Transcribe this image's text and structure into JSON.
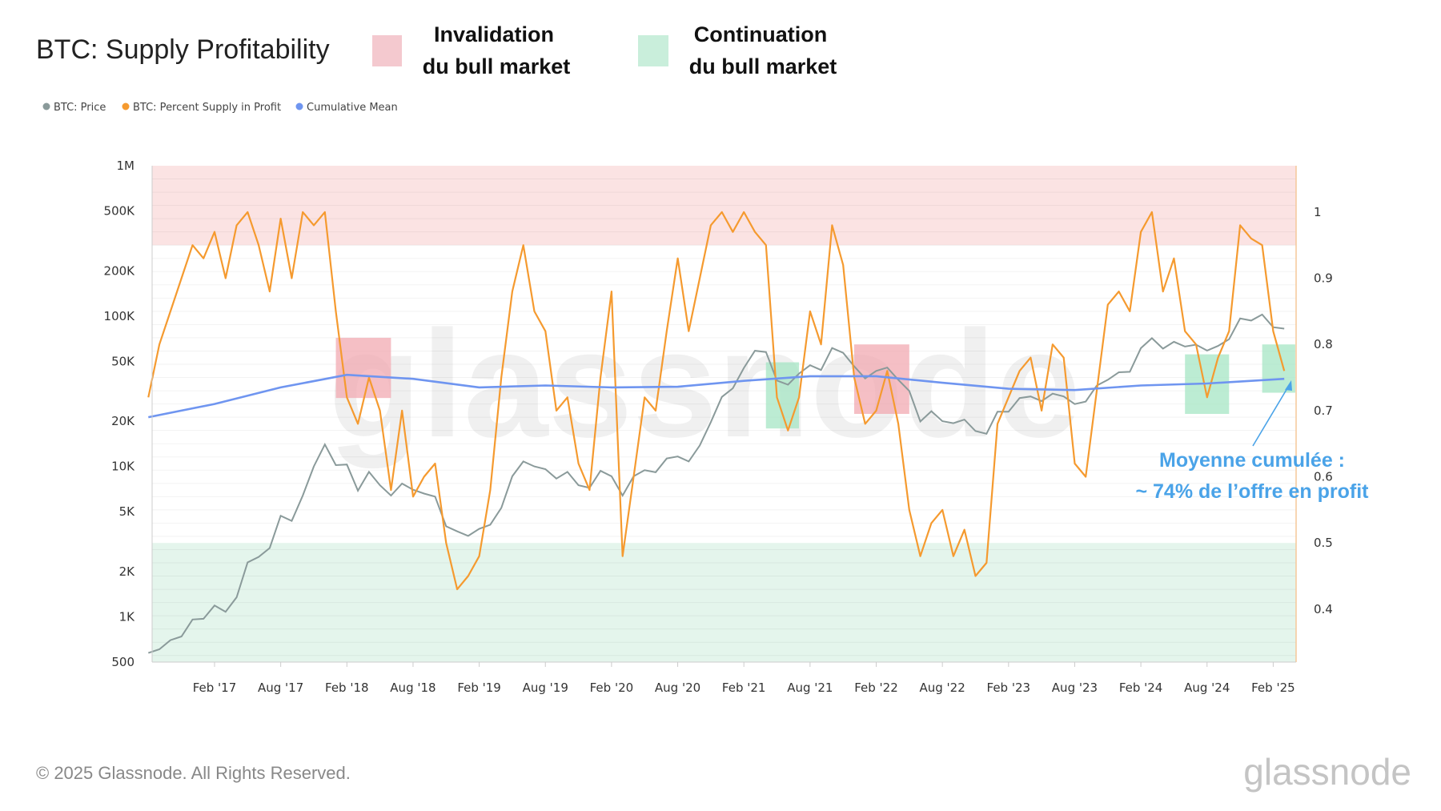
{
  "header": {
    "title": "BTC: Supply Profitability",
    "zone_legend": [
      {
        "label_line1": "Invalidation",
        "label_line2": "du bull market",
        "color": "#f4c9cf"
      },
      {
        "label_line1": "Continuation",
        "label_line2": "du bull market",
        "color": "#c9eedb"
      }
    ]
  },
  "footer": {
    "copyright": "© 2025 Glassnode. All Rights Reserved.",
    "logo": "glassnode"
  },
  "watermark": "glassnode",
  "chart_data": {
    "type": "line",
    "title": "BTC: Supply Profitability",
    "legend_position": "top-left",
    "grid": true,
    "left_axis": {
      "scale": "log",
      "range": [
        500,
        1000000
      ],
      "ticks": [
        {
          "v": 1000000,
          "l": "1M"
        },
        {
          "v": 500000,
          "l": "500K"
        },
        {
          "v": 200000,
          "l": "200K"
        },
        {
          "v": 100000,
          "l": "100K"
        },
        {
          "v": 50000,
          "l": "50K"
        },
        {
          "v": 20000,
          "l": "20K"
        },
        {
          "v": 10000,
          "l": "10K"
        },
        {
          "v": 5000,
          "l": "5K"
        },
        {
          "v": 2000,
          "l": "2K"
        },
        {
          "v": 1000,
          "l": "1K"
        },
        {
          "v": 500,
          "l": "500"
        }
      ]
    },
    "right_axis": {
      "scale": "linear",
      "range": [
        0.32,
        1.07
      ],
      "ticks": [
        {
          "v": 1,
          "l": "1"
        },
        {
          "v": 0.9,
          "l": "0.9"
        },
        {
          "v": 0.8,
          "l": "0.8"
        },
        {
          "v": 0.7,
          "l": "0.7"
        },
        {
          "v": 0.6,
          "l": "0.6"
        },
        {
          "v": 0.5,
          "l": "0.5"
        },
        {
          "v": 0.4,
          "l": "0.4"
        }
      ]
    },
    "x_axis": {
      "range": [
        "2016-08",
        "2025-04"
      ],
      "ticks": [
        {
          "d": "2017-02",
          "l": "Feb '17"
        },
        {
          "d": "2017-08",
          "l": "Aug '17"
        },
        {
          "d": "2018-02",
          "l": "Feb '18"
        },
        {
          "d": "2018-08",
          "l": "Aug '18"
        },
        {
          "d": "2019-02",
          "l": "Feb '19"
        },
        {
          "d": "2019-08",
          "l": "Aug '19"
        },
        {
          "d": "2020-02",
          "l": "Feb '20"
        },
        {
          "d": "2020-08",
          "l": "Aug '20"
        },
        {
          "d": "2021-02",
          "l": "Feb '21"
        },
        {
          "d": "2021-08",
          "l": "Aug '21"
        },
        {
          "d": "2022-02",
          "l": "Feb '22"
        },
        {
          "d": "2022-08",
          "l": "Aug '22"
        },
        {
          "d": "2023-02",
          "l": "Feb '23"
        },
        {
          "d": "2023-08",
          "l": "Aug '23"
        },
        {
          "d": "2024-02",
          "l": "Feb '24"
        },
        {
          "d": "2024-08",
          "l": "Aug '24"
        },
        {
          "d": "2025-02",
          "l": "Feb '25"
        }
      ]
    },
    "bands": [
      {
        "zone": "invalidation",
        "from": 0.95,
        "to": 1.07,
        "color": "#fbe3e3"
      },
      {
        "zone": "continuation",
        "from": 0.32,
        "to": 0.5,
        "color": "#e4f5ec"
      }
    ],
    "highlight_boxes": [
      {
        "zone": "invalidation",
        "start": "2018-01",
        "end": "2018-06",
        "low": 0.719,
        "high": 0.81,
        "color": "#f1aab2"
      },
      {
        "zone": "continuation",
        "start": "2021-04",
        "end": "2021-07",
        "low": 0.673,
        "high": 0.773,
        "color": "#a6e6c4"
      },
      {
        "zone": "invalidation",
        "start": "2021-12",
        "end": "2022-05",
        "low": 0.695,
        "high": 0.8,
        "color": "#f1aab2"
      },
      {
        "zone": "continuation",
        "start": "2024-06",
        "end": "2024-10",
        "low": 0.695,
        "high": 0.785,
        "color": "#a6e6c4"
      },
      {
        "zone": "continuation",
        "start": "2025-01",
        "end": "2025-04",
        "low": 0.727,
        "high": 0.8,
        "color": "#a6e6c4"
      }
    ],
    "annotation": {
      "line1": "Moyenne cumulée :",
      "line2": "~ 74% de l’offre en profit",
      "color": "#4aa3e8",
      "points_to": {
        "date": "2025-03",
        "value": 0.748
      }
    },
    "x": [
      "2016-08",
      "2016-09",
      "2016-10",
      "2016-11",
      "2016-12",
      "2017-01",
      "2017-02",
      "2017-03",
      "2017-04",
      "2017-05",
      "2017-06",
      "2017-07",
      "2017-08",
      "2017-09",
      "2017-10",
      "2017-11",
      "2017-12",
      "2018-01",
      "2018-02",
      "2018-03",
      "2018-04",
      "2018-05",
      "2018-06",
      "2018-07",
      "2018-08",
      "2018-09",
      "2018-10",
      "2018-11",
      "2018-12",
      "2019-01",
      "2019-02",
      "2019-03",
      "2019-04",
      "2019-05",
      "2019-06",
      "2019-07",
      "2019-08",
      "2019-09",
      "2019-10",
      "2019-11",
      "2019-12",
      "2020-01",
      "2020-02",
      "2020-03",
      "2020-04",
      "2020-05",
      "2020-06",
      "2020-07",
      "2020-08",
      "2020-09",
      "2020-10",
      "2020-11",
      "2020-12",
      "2021-01",
      "2021-02",
      "2021-03",
      "2021-04",
      "2021-05",
      "2021-06",
      "2021-07",
      "2021-08",
      "2021-09",
      "2021-10",
      "2021-11",
      "2021-12",
      "2022-01",
      "2022-02",
      "2022-03",
      "2022-04",
      "2022-05",
      "2022-06",
      "2022-07",
      "2022-08",
      "2022-09",
      "2022-10",
      "2022-11",
      "2022-12",
      "2023-01",
      "2023-02",
      "2023-03",
      "2023-04",
      "2023-05",
      "2023-06",
      "2023-07",
      "2023-08",
      "2023-09",
      "2023-10",
      "2023-11",
      "2023-12",
      "2024-01",
      "2024-02",
      "2024-03",
      "2024-04",
      "2024-05",
      "2024-06",
      "2024-07",
      "2024-08",
      "2024-09",
      "2024-10",
      "2024-11",
      "2024-12",
      "2025-01",
      "2025-02",
      "2025-03"
    ],
    "series": [
      {
        "name": "BTC: Price",
        "axis": "left",
        "color": "#8a9a9a",
        "values": [
          575,
          608,
          700,
          740,
          960,
          970,
          1190,
          1080,
          1350,
          2300,
          2500,
          2870,
          4700,
          4340,
          6400,
          10000,
          14000,
          10200,
          10300,
          6900,
          9200,
          7500,
          6400,
          7700,
          7000,
          6600,
          6300,
          4000,
          3700,
          3450,
          3850,
          4100,
          5300,
          8600,
          10800,
          10000,
          9600,
          8300,
          9200,
          7500,
          7200,
          9350,
          8600,
          6400,
          8600,
          9450,
          9150,
          11300,
          11650,
          10800,
          13800,
          19700,
          29000,
          33100,
          45200,
          58800,
          57700,
          37300,
          35000,
          41500,
          47100,
          43800,
          61300,
          57000,
          46300,
          38500,
          43200,
          45500,
          37700,
          31800,
          19900,
          23300,
          20000,
          19400,
          20500,
          17200,
          16500,
          23100,
          23100,
          28500,
          29200,
          27200,
          30500,
          29200,
          26000,
          27000,
          34500,
          37700,
          42300,
          42600,
          61200,
          71300,
          60700,
          67500,
          62700,
          64600,
          59000,
          63300,
          70200,
          96400,
          93400,
          102400,
          84400,
          82500
        ]
      },
      {
        "name": "BTC: Percent Supply in Profit",
        "axis": "right",
        "color": "#f59a2f",
        "values": [
          0.72,
          0.8,
          0.85,
          0.9,
          0.95,
          0.93,
          0.97,
          0.9,
          0.98,
          1.0,
          0.95,
          0.88,
          0.99,
          0.9,
          1.0,
          0.98,
          1.0,
          0.85,
          0.72,
          0.68,
          0.75,
          0.7,
          0.58,
          0.7,
          0.57,
          0.6,
          0.62,
          0.5,
          0.43,
          0.45,
          0.48,
          0.58,
          0.75,
          0.88,
          0.95,
          0.85,
          0.82,
          0.7,
          0.72,
          0.62,
          0.58,
          0.75,
          0.88,
          0.48,
          0.6,
          0.72,
          0.7,
          0.82,
          0.93,
          0.82,
          0.9,
          0.98,
          1.0,
          0.97,
          1.0,
          0.97,
          0.95,
          0.72,
          0.67,
          0.72,
          0.85,
          0.8,
          0.98,
          0.92,
          0.75,
          0.68,
          0.7,
          0.76,
          0.68,
          0.55,
          0.48,
          0.53,
          0.55,
          0.48,
          0.52,
          0.45,
          0.47,
          0.68,
          0.72,
          0.76,
          0.78,
          0.7,
          0.8,
          0.78,
          0.62,
          0.6,
          0.73,
          0.86,
          0.88,
          0.85,
          0.97,
          1.0,
          0.88,
          0.93,
          0.82,
          0.8,
          0.72,
          0.78,
          0.82,
          0.98,
          0.96,
          0.95,
          0.82,
          0.76
        ]
      },
      {
        "name": "Cumulative Mean",
        "axis": "right",
        "color": "#6f95f0",
        "x": [
          "2016-08",
          "2017-02",
          "2017-08",
          "2018-02",
          "2018-08",
          "2019-02",
          "2019-08",
          "2020-02",
          "2020-08",
          "2021-02",
          "2021-08",
          "2022-02",
          "2022-08",
          "2023-02",
          "2023-08",
          "2024-02",
          "2024-08",
          "2025-03"
        ],
        "values": [
          0.69,
          0.71,
          0.735,
          0.754,
          0.748,
          0.735,
          0.738,
          0.735,
          0.736,
          0.745,
          0.752,
          0.752,
          0.742,
          0.733,
          0.731,
          0.738,
          0.741,
          0.748
        ]
      }
    ]
  }
}
